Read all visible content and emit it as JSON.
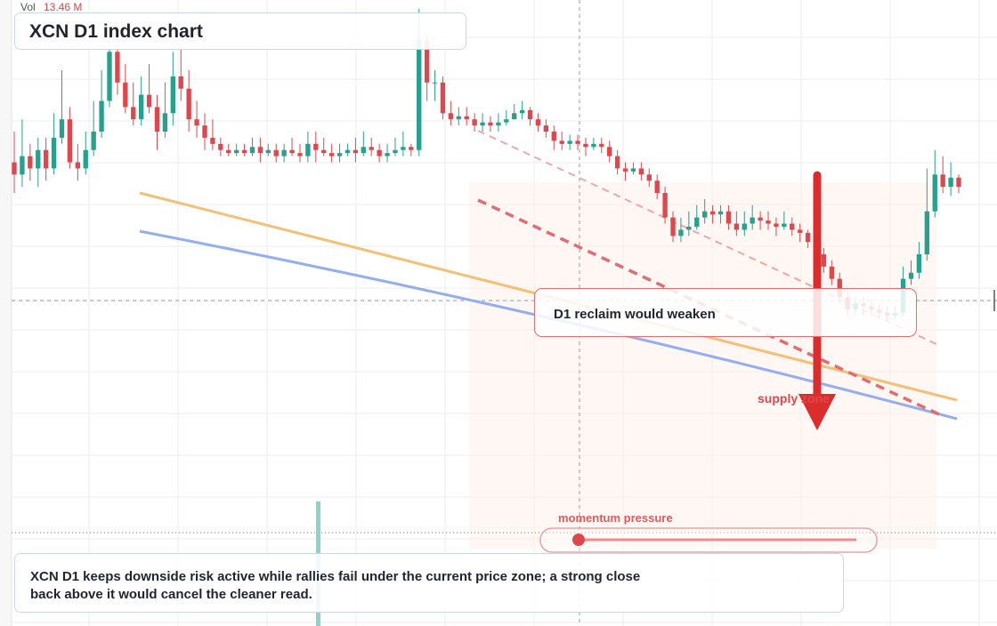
{
  "header": {
    "vol_label": "Vol",
    "vol_value": "13.46 M"
  },
  "title": "XCN D1 index chart",
  "annotations": {
    "reclaim_note": "D1 reclaim would weaken",
    "supply_label": "supply zone",
    "momentum_label": "momentum pressure",
    "caption": "XCN D1 keeps downside risk active while rallies fail under the current price zone; a strong close back above it would cancel the cleaner read."
  },
  "colors": {
    "up": "#26a18e",
    "down": "#e0474c",
    "volume": "#8fd3c8",
    "orange_line": "#f5c075",
    "blue_line": "#94aef0",
    "arrow": "#dc2d2d",
    "zone": "#fdf1ea"
  },
  "chart_data": {
    "type": "candlestick",
    "title": "XCN D1 index chart",
    "volume_label": "13.46 M",
    "price_range": [
      0,
      100
    ],
    "candles": [
      [
        75,
        73,
        80,
        70
      ],
      [
        73,
        76,
        82,
        71
      ],
      [
        76,
        74,
        78,
        72
      ],
      [
        74,
        77,
        79,
        71
      ],
      [
        77,
        74,
        79,
        72
      ],
      [
        74,
        79,
        83,
        73
      ],
      [
        79,
        82,
        90,
        78
      ],
      [
        82,
        75,
        84,
        74
      ],
      [
        75,
        74,
        78,
        72
      ],
      [
        74,
        77,
        80,
        73
      ],
      [
        77,
        80,
        85,
        76
      ],
      [
        80,
        85,
        90,
        79
      ],
      [
        85,
        93,
        98,
        84
      ],
      [
        93,
        88,
        95,
        86
      ],
      [
        88,
        84,
        91,
        83
      ],
      [
        84,
        82,
        88,
        81
      ],
      [
        82,
        86,
        89,
        81
      ],
      [
        86,
        84,
        91,
        83
      ],
      [
        84,
        80,
        86,
        77
      ],
      [
        80,
        83,
        88,
        79
      ],
      [
        83,
        89,
        93,
        81
      ],
      [
        89,
        87,
        94,
        85
      ],
      [
        87,
        82,
        90,
        80
      ],
      [
        82,
        81,
        85,
        79
      ],
      [
        81,
        79,
        83,
        77
      ],
      [
        79,
        78,
        82,
        77
      ],
      [
        78,
        77,
        79,
        76
      ],
      [
        77,
        76.5,
        78,
        76
      ],
      [
        76.5,
        77,
        78,
        76
      ],
      [
        77,
        76.5,
        78,
        76
      ],
      [
        76.5,
        77.5,
        79,
        76
      ],
      [
        77.5,
        76.5,
        79,
        75
      ],
      [
        76.5,
        77,
        78,
        76
      ],
      [
        77,
        76,
        78,
        75
      ],
      [
        76,
        77,
        78,
        75
      ],
      [
        77,
        76.5,
        79,
        76
      ],
      [
        76.5,
        76,
        78,
        75
      ],
      [
        76,
        78,
        80,
        75
      ],
      [
        78,
        77,
        80,
        75
      ],
      [
        77,
        76.5,
        79,
        76
      ],
      [
        76.5,
        76,
        78,
        75
      ],
      [
        76,
        76.5,
        78,
        75
      ],
      [
        76.5,
        77,
        78,
        76
      ],
      [
        77,
        76.5,
        79,
        75
      ],
      [
        76.5,
        77.5,
        80,
        76
      ],
      [
        77.5,
        77,
        79,
        76
      ],
      [
        77,
        76,
        78,
        75
      ],
      [
        76,
        76.5,
        78,
        75
      ],
      [
        76.5,
        77,
        79,
        76
      ],
      [
        77,
        77.5,
        80,
        76
      ],
      [
        77.5,
        77,
        78,
        76
      ],
      [
        77,
        95,
        99,
        76
      ],
      [
        95,
        88,
        96,
        85
      ],
      [
        88,
        88,
        90,
        85
      ],
      [
        88,
        83,
        89,
        82
      ],
      [
        83,
        82,
        85,
        81
      ],
      [
        82,
        82.5,
        84,
        81
      ],
      [
        82.5,
        82,
        84,
        81
      ],
      [
        82,
        81,
        83,
        80
      ],
      [
        81,
        81.5,
        83,
        80
      ],
      [
        81.5,
        81,
        82.5,
        80
      ],
      [
        81,
        81.5,
        83,
        80
      ],
      [
        81.5,
        82,
        83.5,
        81
      ],
      [
        82,
        83,
        84.5,
        82
      ],
      [
        83,
        83.5,
        85,
        82
      ],
      [
        83.5,
        82,
        84,
        81
      ],
      [
        82,
        81,
        83,
        80
      ],
      [
        81,
        80,
        82,
        79
      ],
      [
        80,
        78.5,
        81,
        77
      ],
      [
        78.5,
        78,
        80,
        77
      ],
      [
        78,
        78.5,
        79.5,
        77
      ],
      [
        78.5,
        78,
        79.5,
        77
      ],
      [
        78,
        77.5,
        79,
        76
      ],
      [
        77.5,
        78,
        79,
        77
      ],
      [
        78,
        77.5,
        79,
        76.5
      ],
      [
        77.5,
        76,
        78.5,
        75
      ],
      [
        76,
        74,
        77,
        73
      ],
      [
        74,
        73.5,
        75,
        72
      ],
      [
        73.5,
        74,
        75,
        73
      ],
      [
        74,
        73,
        75,
        72
      ],
      [
        73,
        72,
        74,
        71
      ],
      [
        72,
        70,
        73,
        69
      ],
      [
        70,
        66,
        71,
        65
      ],
      [
        66,
        63,
        67,
        62
      ],
      [
        63,
        64,
        66,
        62
      ],
      [
        64,
        64.5,
        67,
        63
      ],
      [
        64.5,
        66,
        68,
        64
      ],
      [
        66,
        67,
        69,
        65
      ],
      [
        67,
        66.5,
        68,
        65
      ],
      [
        66.5,
        67,
        68,
        65
      ],
      [
        67,
        65,
        68,
        64
      ],
      [
        65,
        64,
        67,
        63
      ],
      [
        64,
        65,
        67,
        63
      ],
      [
        65,
        66,
        68,
        64
      ],
      [
        66,
        65.5,
        67,
        64
      ],
      [
        65.5,
        65,
        67,
        64
      ],
      [
        65,
        64.5,
        66,
        63
      ],
      [
        64.5,
        65,
        67,
        64
      ],
      [
        65,
        64,
        66,
        63
      ],
      [
        64,
        63.5,
        65,
        62
      ],
      [
        63.5,
        62,
        64,
        61
      ],
      [
        62,
        60,
        63,
        59
      ],
      [
        60,
        58,
        61,
        57
      ],
      [
        58,
        56,
        59,
        55
      ],
      [
        56,
        53,
        57,
        52
      ],
      [
        53,
        51,
        54,
        50
      ],
      [
        51,
        52,
        53,
        50
      ],
      [
        52,
        51.5,
        53,
        50
      ],
      [
        51.5,
        51,
        52.5,
        50
      ],
      [
        51,
        50.5,
        52,
        49.5
      ],
      [
        50.5,
        50,
        51.5,
        49
      ],
      [
        50,
        50.5,
        51.5,
        49.5
      ],
      [
        50.5,
        56,
        58,
        50
      ],
      [
        56,
        57,
        59,
        55
      ],
      [
        57,
        60,
        62,
        56
      ],
      [
        60,
        67,
        74,
        59
      ],
      [
        67,
        73,
        77,
        66
      ],
      [
        73,
        71,
        76,
        70
      ],
      [
        71,
        72.5,
        75,
        69.5
      ],
      [
        72.5,
        71,
        73,
        70
      ]
    ],
    "trendlines": [
      {
        "name": "",
        "color": "#f5c075"
      },
      {
        "name": "",
        "color": "#94aef0"
      }
    ]
  }
}
